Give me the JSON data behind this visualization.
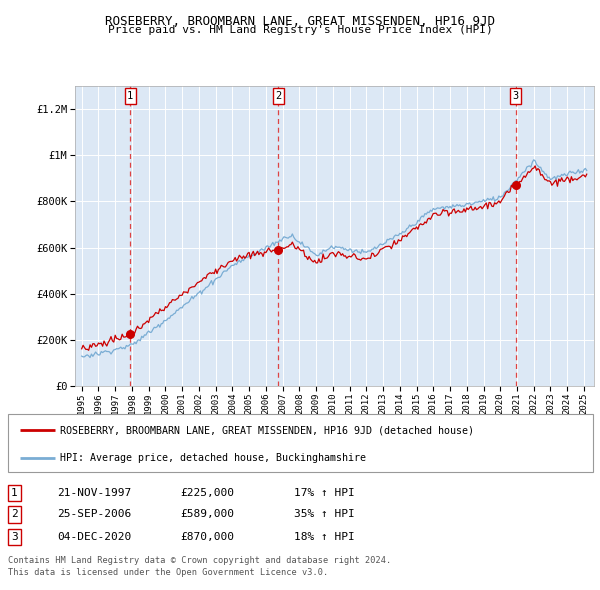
{
  "title": "ROSEBERRY, BROOMBARN LANE, GREAT MISSENDEN, HP16 9JD",
  "subtitle": "Price paid vs. HM Land Registry's House Price Index (HPI)",
  "legend_line1": "ROSEBERRY, BROOMBARN LANE, GREAT MISSENDEN, HP16 9JD (detached house)",
  "legend_line2": "HPI: Average price, detached house, Buckinghamshire",
  "footer1": "Contains HM Land Registry data © Crown copyright and database right 2024.",
  "footer2": "This data is licensed under the Open Government Licence v3.0.",
  "transactions": [
    {
      "num": 1,
      "date": "21-NOV-1997",
      "price": 225000,
      "hpi_pct": "17% ↑ HPI",
      "year": 1997.9
    },
    {
      "num": 2,
      "date": "25-SEP-2006",
      "price": 589000,
      "hpi_pct": "35% ↑ HPI",
      "year": 2006.75
    },
    {
      "num": 3,
      "date": "04-DEC-2020",
      "price": 870000,
      "hpi_pct": "18% ↑ HPI",
      "year": 2020.92
    }
  ],
  "red_line_color": "#cc0000",
  "blue_line_color": "#7aadd4",
  "dot_color": "#cc0000",
  "dashed_line_color": "#dd4444",
  "box_color": "#cc0000",
  "background_color": "#dce8f5",
  "ylim": [
    0,
    1300000
  ],
  "yticks": [
    0,
    200000,
    400000,
    600000,
    800000,
    1000000,
    1200000
  ],
  "xlim_start": 1994.6,
  "xlim_end": 2025.6,
  "xtick_years": [
    1995,
    1996,
    1997,
    1998,
    1999,
    2000,
    2001,
    2002,
    2003,
    2004,
    2005,
    2006,
    2007,
    2008,
    2009,
    2010,
    2011,
    2012,
    2013,
    2014,
    2015,
    2016,
    2017,
    2018,
    2019,
    2020,
    2021,
    2022,
    2023,
    2024,
    2025
  ]
}
